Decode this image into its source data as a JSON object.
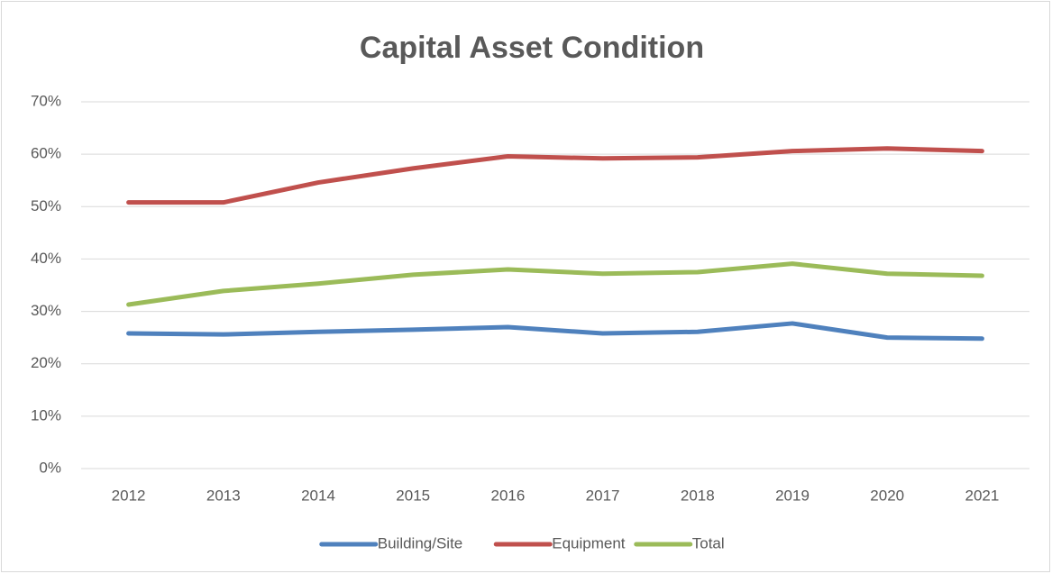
{
  "chart_data": {
    "type": "line",
    "title": "Capital Asset Condition",
    "categories": [
      "2012",
      "2013",
      "2014",
      "2015",
      "2016",
      "2017",
      "2018",
      "2019",
      "2020",
      "2021"
    ],
    "series": [
      {
        "name": "Building/Site",
        "color": "#4f81bd",
        "values": [
          25.8,
          25.6,
          26.1,
          26.5,
          27.0,
          25.8,
          26.1,
          27.7,
          25.0,
          24.8
        ]
      },
      {
        "name": "Equipment",
        "color": "#c0504d",
        "values": [
          50.8,
          50.8,
          54.6,
          57.3,
          59.6,
          59.2,
          59.4,
          60.6,
          61.1,
          60.6
        ]
      },
      {
        "name": "Total",
        "color": "#9bbb59",
        "values": [
          31.3,
          33.9,
          35.3,
          37.0,
          38.0,
          37.2,
          37.5,
          39.1,
          37.2,
          36.8
        ]
      }
    ],
    "ylim": [
      0,
      70
    ],
    "yticks": [
      {
        "value": 0,
        "label": "0%"
      },
      {
        "value": 10,
        "label": "10%"
      },
      {
        "value": 20,
        "label": "20%"
      },
      {
        "value": 30,
        "label": "30%"
      },
      {
        "value": 40,
        "label": "40%"
      },
      {
        "value": 50,
        "label": "50%"
      },
      {
        "value": 60,
        "label": "60%"
      },
      {
        "value": 70,
        "label": "70%"
      }
    ],
    "grid": true,
    "legend": "bottom"
  }
}
